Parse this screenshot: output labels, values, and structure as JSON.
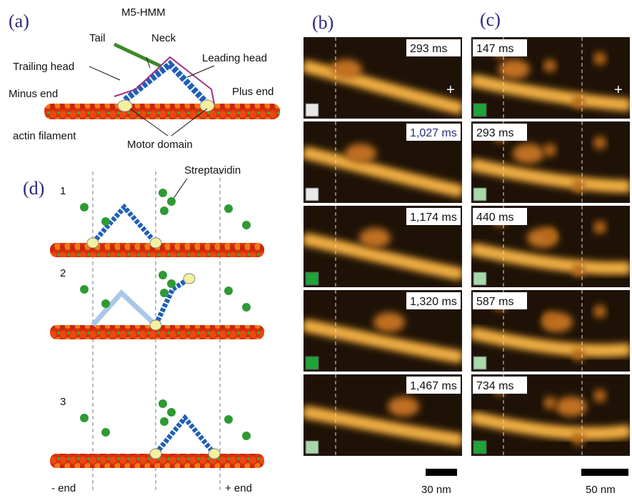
{
  "panel_a": {
    "label": "(a)",
    "title": "M5-HMM",
    "tail": "Tail",
    "neck": "Neck",
    "trailing_head": "Trailing head",
    "leading_head": "Leading head",
    "minus_end": "Minus end",
    "plus_end": "Plus end",
    "actin": "actin filament",
    "motor_domain": "Motor domain"
  },
  "panel_b": {
    "label": "(b)",
    "marker": "+",
    "scale_bar": "30 nm",
    "frames": [
      {
        "time": "293 ms",
        "indicator": "#e8e8e8"
      },
      {
        "time": "1,027 ms",
        "indicator": "#e8e8e8"
      },
      {
        "time": "1,174 ms",
        "indicator": "#1fa33a"
      },
      {
        "time": "1,320 ms",
        "indicator": "#1fa33a"
      },
      {
        "time": "1,467 ms",
        "indicator": "#a8d8a8"
      }
    ]
  },
  "panel_c": {
    "label": "(c)",
    "marker": "+",
    "scale_bar": "50 nm",
    "frames": [
      {
        "time": "147 ms",
        "indicator": "#1fa33a"
      },
      {
        "time": "293 ms",
        "indicator": "#a8d8a8"
      },
      {
        "time": "440 ms",
        "indicator": "#a8d8a8"
      },
      {
        "time": "587 ms",
        "indicator": "#a8d8a8"
      },
      {
        "time": "734 ms",
        "indicator": "#1fa33a"
      }
    ]
  },
  "panel_d": {
    "label": "(d)",
    "streptavidin": "Streptavidin",
    "steps": [
      "1",
      "2",
      "3"
    ],
    "minus_end": "- end",
    "plus_end": "+ end"
  }
}
